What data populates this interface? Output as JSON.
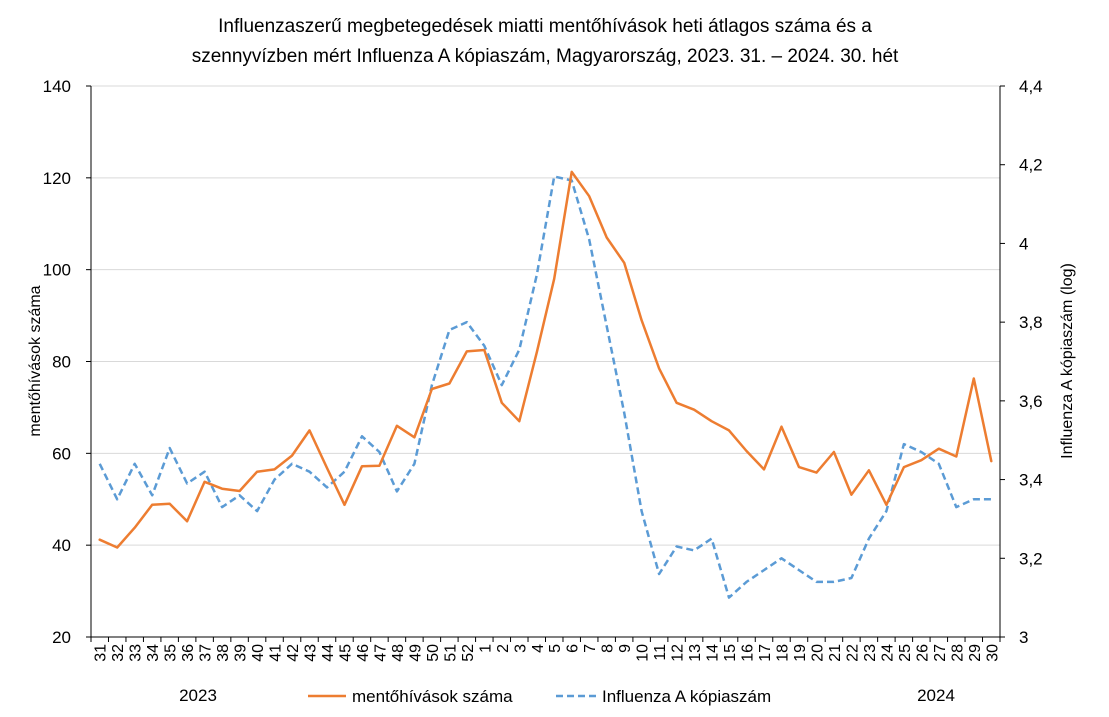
{
  "chart_data": {
    "type": "line",
    "title_line1": "Influenzaszerű megbetegedések miatti mentőhívások heti átlagos száma és a",
    "title_line2": "szennyvízben mért Influenza A kópiaszám, Magyarország, 2023. 31. – 2024. 30. hét",
    "ylabel_left": "mentőhívások száma",
    "ylabel_right": "Influenza A kópiaszám (log)",
    "ylim_left": [
      20,
      140
    ],
    "yticks_left": [
      "20",
      "40",
      "60",
      "80",
      "100",
      "120",
      "140"
    ],
    "ylim_right": [
      3,
      4.4
    ],
    "yticks_right": [
      "3",
      "3,2",
      "3,4",
      "3,6",
      "3,8",
      "4",
      "4,2",
      "4,4"
    ],
    "categories": [
      "31",
      "32",
      "33",
      "34",
      "35",
      "36",
      "37",
      "38",
      "39",
      "40",
      "41",
      "42",
      "43",
      "44",
      "45",
      "46",
      "47",
      "48",
      "49",
      "50",
      "51",
      "52",
      "1",
      "2",
      "3",
      "4",
      "5",
      "6",
      "7",
      "8",
      "9",
      "10",
      "11",
      "12",
      "13",
      "14",
      "15",
      "16",
      "17",
      "18",
      "19",
      "20",
      "21",
      "22",
      "23",
      "24",
      "25",
      "26",
      "27",
      "28",
      "29",
      "30"
    ],
    "year_labels": [
      "2023",
      "2024"
    ],
    "series": [
      {
        "name": "mentőhívások száma",
        "axis": "left",
        "color": "#ED7D31",
        "style": "solid",
        "values": [
          41.2,
          39.5,
          43.8,
          48.8,
          49,
          45.2,
          53.8,
          52.3,
          51.8,
          56,
          56.5,
          59.5,
          65,
          56.8,
          48.8,
          57.2,
          57.3,
          66,
          63.5,
          74,
          75.2,
          82.2,
          82.5,
          71,
          67,
          82,
          98,
          121.3,
          116,
          107,
          101.5,
          89,
          78.5,
          71,
          69.5,
          67,
          65,
          60.5,
          56.5,
          65.8,
          57,
          55.8,
          60.3,
          51,
          56.3,
          48.8,
          57,
          58.5,
          61,
          59.3,
          76.3,
          58.3
        ]
      },
      {
        "name": "Influenza A kópiaszám",
        "axis": "right",
        "color": "#5B9BD5",
        "style": "dashed",
        "values": [
          3.44,
          3.35,
          3.44,
          3.36,
          3.48,
          3.39,
          3.42,
          3.33,
          3.36,
          3.32,
          3.4,
          3.44,
          3.42,
          3.38,
          3.42,
          3.51,
          3.47,
          3.37,
          3.44,
          3.64,
          3.78,
          3.8,
          3.74,
          3.64,
          3.73,
          3.92,
          4.17,
          4.16,
          4.01,
          3.79,
          3.57,
          3.32,
          3.16,
          3.23,
          3.22,
          3.25,
          3.1,
          3.14,
          3.17,
          3.2,
          3.17,
          3.14,
          3.14,
          3.15,
          3.25,
          3.32,
          3.49,
          3.47,
          3.44,
          3.33,
          3.35,
          3.35
        ]
      }
    ]
  }
}
